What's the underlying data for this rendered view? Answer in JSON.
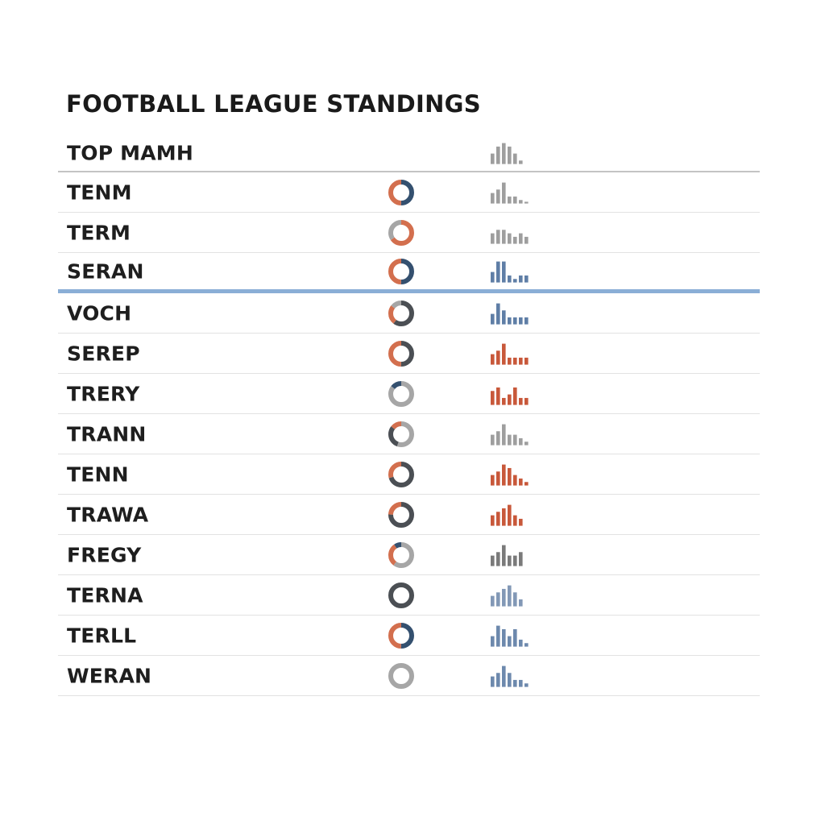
{
  "title": "FOOTBALL LEAGUE STANDINGS",
  "header": {
    "label": "TOP MAMH",
    "form": [
      3,
      5,
      6,
      5,
      3,
      1
    ],
    "form_color": "#9e9e9e"
  },
  "cutoff_after_index": 2,
  "palette": {
    "navy": "#34506f",
    "orange": "#d36f4e",
    "gray": "#a6a6a6",
    "dark": "#4b4f54",
    "blue": "#5f7ea6",
    "red": "#c8583a",
    "midgray": "#9e9e9e",
    "lightblue": "#8298b6"
  },
  "chart_data": {
    "type": "table",
    "title": "FOOTBALL LEAGUE STANDINGS",
    "columns": [
      "",
      "",
      ""
    ],
    "rows": [
      {
        "team": "TENM",
        "split": [
          {
            "color": "#34506f",
            "value": 0.5
          },
          {
            "color": "#d36f4e",
            "value": 0.5
          }
        ],
        "form": [
          3,
          4,
          6,
          2,
          2,
          1,
          0.5
        ],
        "form_color": "#9e9e9e"
      },
      {
        "team": "TERM",
        "split": [
          {
            "color": "#d36f4e",
            "value": 0.65
          },
          {
            "color": "#a6a6a6",
            "value": 0.35
          }
        ],
        "form": [
          3,
          4,
          4,
          3,
          2,
          3,
          2
        ],
        "form_color": "#9e9e9e"
      },
      {
        "team": "SERAN",
        "split": [
          {
            "color": "#34506f",
            "value": 0.5
          },
          {
            "color": "#d36f4e",
            "value": 0.5
          }
        ],
        "form": [
          3,
          6,
          6,
          2,
          1,
          2,
          2
        ],
        "form_color": "#5f7ea6"
      },
      {
        "team": "VOCH",
        "split": [
          {
            "color": "#4b4f54",
            "value": 0.6
          },
          {
            "color": "#d36f4e",
            "value": 0.25
          },
          {
            "color": "#a6a6a6",
            "value": 0.15
          }
        ],
        "form": [
          3,
          6,
          4,
          2,
          2,
          2,
          2
        ],
        "form_color": "#5f7ea6"
      },
      {
        "team": "SEREP",
        "split": [
          {
            "color": "#4b4f54",
            "value": 0.5
          },
          {
            "color": "#d36f4e",
            "value": 0.5
          }
        ],
        "form": [
          3,
          4,
          6,
          2,
          2,
          2,
          2
        ],
        "form_color": "#c8583a"
      },
      {
        "team": "TRERY",
        "split": [
          {
            "color": "#a6a6a6",
            "value": 0.85
          },
          {
            "color": "#34506f",
            "value": 0.15
          }
        ],
        "form": [
          4,
          5,
          2,
          3,
          5,
          2,
          2
        ],
        "form_color": "#c8583a"
      },
      {
        "team": "TRANN",
        "split": [
          {
            "color": "#a6a6a6",
            "value": 0.55
          },
          {
            "color": "#4b4f54",
            "value": 0.3
          },
          {
            "color": "#d36f4e",
            "value": 0.15
          }
        ],
        "form": [
          3,
          4,
          6,
          3,
          3,
          2,
          1
        ],
        "form_color": "#9e9e9e"
      },
      {
        "team": "TENN",
        "split": [
          {
            "color": "#4b4f54",
            "value": 0.7
          },
          {
            "color": "#d36f4e",
            "value": 0.3
          }
        ],
        "form": [
          3,
          4,
          6,
          5,
          3,
          2,
          1
        ],
        "form_color": "#c8583a"
      },
      {
        "team": "TRAWA",
        "split": [
          {
            "color": "#4b4f54",
            "value": 0.75
          },
          {
            "color": "#d36f4e",
            "value": 0.25
          }
        ],
        "form": [
          3,
          4,
          5,
          6,
          3,
          2
        ],
        "form_color": "#c8583a"
      },
      {
        "team": "FREGY",
        "split": [
          {
            "color": "#a6a6a6",
            "value": 0.6
          },
          {
            "color": "#d36f4e",
            "value": 0.3
          },
          {
            "color": "#34506f",
            "value": 0.1
          }
        ],
        "form": [
          3,
          4,
          6,
          3,
          3,
          4
        ],
        "form_color": "#7a7a7a"
      },
      {
        "team": "TERNA",
        "split": [
          {
            "color": "#4b4f54",
            "value": 1.0
          }
        ],
        "form": [
          3,
          4,
          5,
          6,
          4,
          2
        ],
        "form_color": "#8298b6"
      },
      {
        "team": "TERLL",
        "split": [
          {
            "color": "#34506f",
            "value": 0.5
          },
          {
            "color": "#d36f4e",
            "value": 0.5
          }
        ],
        "form": [
          3,
          6,
          5,
          3,
          5,
          2,
          1
        ],
        "form_color": "#6d89ad"
      },
      {
        "team": "WERAN",
        "split": [
          {
            "color": "#a6a6a6",
            "value": 1.0
          }
        ],
        "form": [
          3,
          4,
          6,
          4,
          2,
          2,
          1
        ],
        "form_color": "#6d89ad"
      }
    ]
  }
}
